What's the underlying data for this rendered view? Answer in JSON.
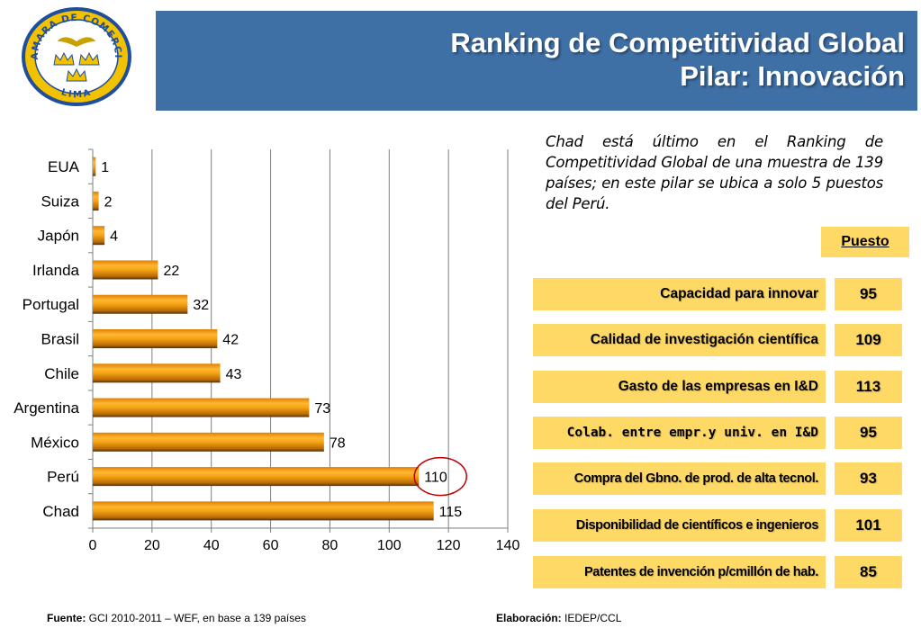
{
  "logo": {
    "text_top": "CAMARA DE COMERCIO",
    "text_bottom": "LIMA"
  },
  "header": {
    "title_line1": "Ranking de Competitividad Global",
    "title_line2": "Pilar: Innovación"
  },
  "chart_data": {
    "type": "bar",
    "orientation": "horizontal",
    "categories": [
      "EUA",
      "Suiza",
      "Japón",
      "Irlanda",
      "Portugal",
      "Brasil",
      "Chile",
      "Argentina",
      "México",
      "Perú",
      "Chad"
    ],
    "values": [
      1,
      2,
      4,
      22,
      32,
      42,
      43,
      73,
      78,
      110,
      115
    ],
    "x_ticks": [
      "0",
      "20",
      "40",
      "60",
      "80",
      "100",
      "120",
      "140"
    ],
    "xlim": [
      0,
      140
    ],
    "grid": true,
    "highlight": "Perú",
    "bar_color": "#f5a313"
  },
  "note": {
    "text": "Chad está  último en el Ranking de Competitividad Global de una muestra de 139 países; en este pilar se ubica a solo 5 puestos del Perú."
  },
  "table": {
    "header": "Puesto",
    "rows": [
      {
        "label": "Capacidad para innovar",
        "value": "95"
      },
      {
        "label": "Calidad de investigación científica",
        "value": "109"
      },
      {
        "label": "Gasto de las empresas en I&D",
        "value": "113"
      },
      {
        "label": "Colab. entre empr.y univ. en I&D",
        "value": "95"
      },
      {
        "label": "Compra del Gbno. de prod. de alta tecnol.",
        "value": "93"
      },
      {
        "label": "Disponibilidad de científicos e ingenieros",
        "value": "101"
      },
      {
        "label": "Patentes de invención p/cmillón de hab.",
        "value": "85"
      }
    ]
  },
  "footer": {
    "source_label": "Fuente:",
    "source_text": " GCI 2010-2011 – WEF, en base a 139 países",
    "elab_label": "Elaboración:",
    "elab_text": " IEDEP/CCL"
  },
  "colors": {
    "header_band": "#3e6fa5",
    "table_fill": "#ffd966",
    "logo_blue": "#1f4e9c",
    "logo_gold": "#f2c200"
  }
}
